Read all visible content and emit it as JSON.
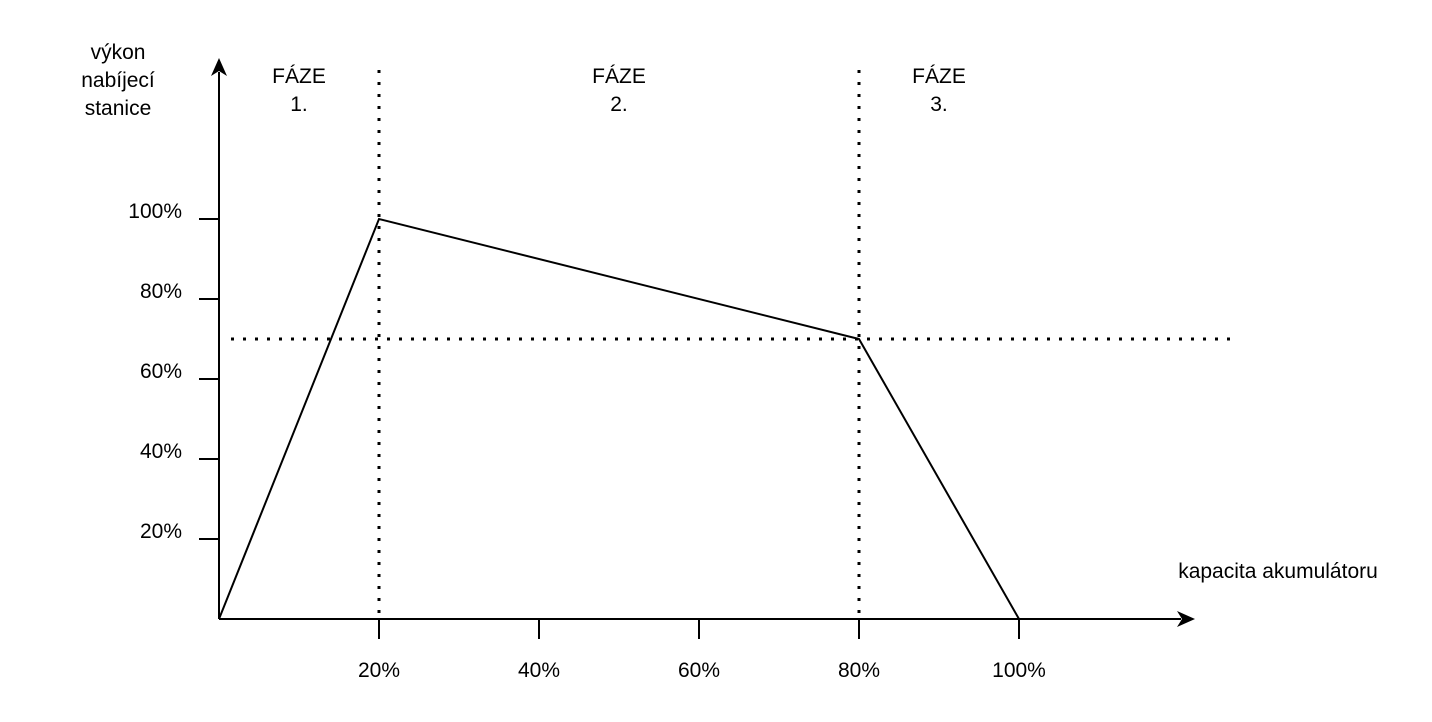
{
  "chart_data": {
    "type": "line",
    "y_axis_label_lines": [
      "výkon",
      "nabíjecí",
      "stanice"
    ],
    "x_axis_label": "kapacita akumulátoru",
    "x_ticks": [
      20,
      40,
      60,
      80,
      100
    ],
    "x_tick_labels": [
      "20%",
      "40%",
      "60%",
      "80%",
      "100%"
    ],
    "y_ticks": [
      20,
      40,
      60,
      80,
      100
    ],
    "y_tick_labels": [
      "20%",
      "40%",
      "60%",
      "80%",
      "100%"
    ],
    "xlim": [
      0,
      122
    ],
    "ylim": [
      0,
      100
    ],
    "series": [
      {
        "x": [
          0,
          20,
          80,
          100
        ],
        "y": [
          0,
          100,
          70,
          0
        ]
      }
    ],
    "reference_lines": {
      "horizontal_y": [
        70
      ],
      "vertical_x": [
        20,
        80
      ]
    },
    "phase_labels": [
      {
        "x_center": 10,
        "lines": [
          "FÁZE",
          "1."
        ]
      },
      {
        "x_center": 50,
        "lines": [
          "FÁZE",
          "2."
        ]
      },
      {
        "x_center": 90,
        "lines": [
          "FÁZE",
          "3."
        ]
      }
    ],
    "grid": false
  }
}
